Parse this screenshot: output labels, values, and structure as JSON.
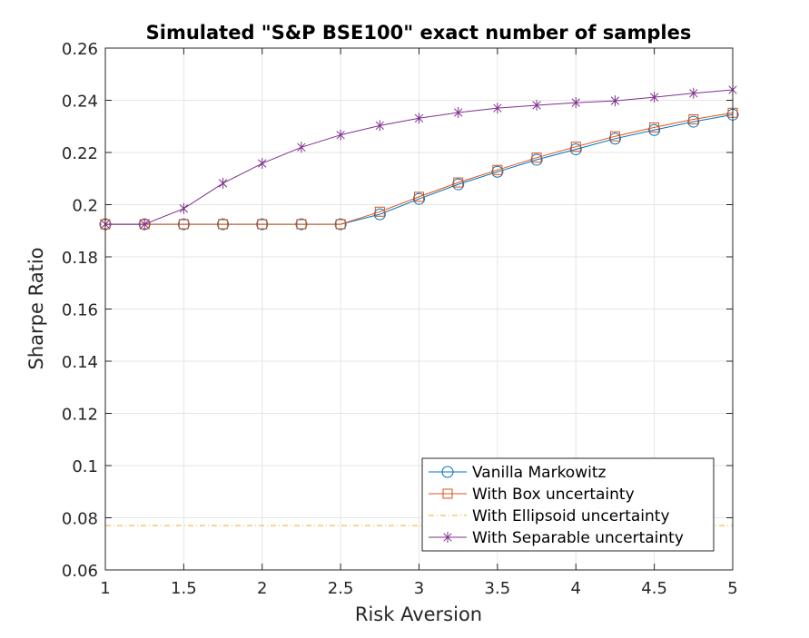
{
  "chart_data": {
    "type": "line",
    "title": "Simulated \"S&P BSE100\" exact number of samples",
    "xlabel": "Risk Aversion",
    "ylabel": "Sharpe Ratio",
    "xlim": [
      1,
      5
    ],
    "ylim": [
      0.06,
      0.26
    ],
    "x_ticks": [
      "1",
      "1.5",
      "2",
      "2.5",
      "3",
      "3.5",
      "4",
      "4.5",
      "5"
    ],
    "y_ticks": [
      "0.06",
      "0.08",
      "0.1",
      "0.12",
      "0.14",
      "0.16",
      "0.18",
      "0.2",
      "0.22",
      "0.24",
      "0.26"
    ],
    "grid": true,
    "legend_position": "bottom-right",
    "x": [
      1,
      1.25,
      1.5,
      1.75,
      2,
      2.25,
      2.5,
      2.75,
      3,
      3.25,
      3.5,
      3.75,
      4,
      4.25,
      4.5,
      4.75,
      5
    ],
    "series": [
      {
        "name": "Vanilla Markowitz",
        "color": "#0072BD",
        "marker": "circle",
        "values": [
          0.1925,
          0.1925,
          0.1925,
          0.1925,
          0.1925,
          0.1925,
          0.1925,
          0.1963,
          0.2022,
          0.2078,
          0.2126,
          0.2172,
          0.2212,
          0.2253,
          0.2286,
          0.2318,
          0.2345
        ]
      },
      {
        "name": "With Box uncertainty",
        "color": "#D95319",
        "marker": "square",
        "values": [
          0.1925,
          0.1925,
          0.1925,
          0.1925,
          0.1925,
          0.1925,
          0.1925,
          0.1973,
          0.203,
          0.2085,
          0.2133,
          0.218,
          0.2222,
          0.2262,
          0.2296,
          0.2327,
          0.2352
        ]
      },
      {
        "name": "With Ellipsoid uncertainty",
        "color": "#EDB120",
        "marker": "none",
        "line_style": "dash-dot",
        "values": [
          0.077,
          0.077,
          0.077,
          0.077,
          0.077,
          0.077,
          0.077,
          0.077,
          0.077,
          0.077,
          0.077,
          0.077,
          0.077,
          0.077,
          0.077,
          0.077,
          0.077
        ]
      },
      {
        "name": "With Separable uncertainty",
        "color": "#7E2F8E",
        "marker": "asterisk",
        "values": [
          0.1925,
          0.1925,
          0.1985,
          0.2082,
          0.2158,
          0.222,
          0.2267,
          0.2303,
          0.2331,
          0.2353,
          0.237,
          0.2381,
          0.2391,
          0.2398,
          0.2412,
          0.2427,
          0.244
        ]
      }
    ]
  }
}
